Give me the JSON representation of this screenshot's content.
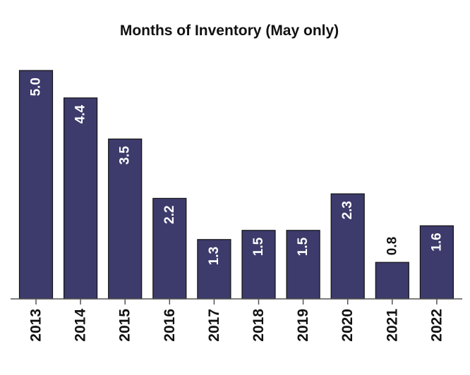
{
  "chart_data": {
    "type": "bar",
    "title": "Months of Inventory (May only)",
    "xlabel": "",
    "ylabel": "",
    "categories": [
      "2013",
      "2014",
      "2015",
      "2016",
      "2017",
      "2018",
      "2019",
      "2020",
      "2021",
      "2022"
    ],
    "values": [
      5.0,
      4.4,
      3.5,
      2.2,
      1.3,
      1.5,
      1.5,
      2.3,
      0.8,
      1.6
    ],
    "labels": [
      "5.0",
      "4.4",
      "3.5",
      "2.2",
      "1.3",
      "1.5",
      "1.5",
      "2.3",
      "0.8",
      "1.6"
    ],
    "ylim": [
      0,
      5.0
    ],
    "grid": false,
    "legend": "none",
    "bar_color": "#3d3b6b",
    "label_inside_color": "#ffffff",
    "label_outside_color": "#111111"
  }
}
